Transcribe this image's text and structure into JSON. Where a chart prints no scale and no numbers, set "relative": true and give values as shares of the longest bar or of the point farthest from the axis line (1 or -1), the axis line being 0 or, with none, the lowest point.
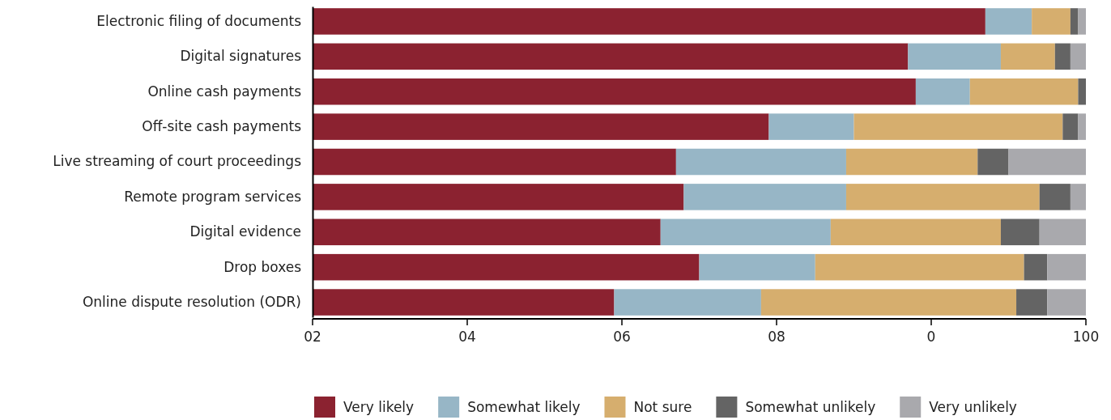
{
  "chart_data": {
    "type": "bar",
    "orientation": "horizontal",
    "stacked": true,
    "relative": true,
    "categories": [
      "Electronic filing of documents",
      "Digital signatures",
      "Online cash payments",
      "Off-site cash payments",
      "Live streaming of court proceedings",
      "Remote program services",
      "Digital evidence",
      "Drop boxes",
      "Online dispute resolution (ODR)"
    ],
    "series": [
      {
        "name": "Very likely",
        "color": "#8b2230",
        "values": [
          0.87,
          0.77,
          0.78,
          0.59,
          0.47,
          0.48,
          0.45,
          0.5,
          0.39
        ]
      },
      {
        "name": "Somewhat likely",
        "color": "#97b6c6",
        "values": [
          0.06,
          0.12,
          0.07,
          0.11,
          0.22,
          0.21,
          0.22,
          0.15,
          0.19
        ]
      },
      {
        "name": "Not sure",
        "color": "#d6ae6e",
        "values": [
          0.05,
          0.07,
          0.14,
          0.27,
          0.17,
          0.25,
          0.22,
          0.27,
          0.33
        ]
      },
      {
        "name": "Somewhat unlikely",
        "color": "#646464",
        "values": [
          0.01,
          0.02,
          0.01,
          0.02,
          0.04,
          0.04,
          0.05,
          0.03,
          0.04
        ]
      },
      {
        "name": "Very unlikely",
        "color": "#a9a9ad",
        "values": [
          0.01,
          0.02,
          0,
          0.01,
          0.1,
          0.02,
          0.06,
          0.05,
          0.05
        ]
      }
    ],
    "annotations": [
      "02",
      "04",
      "06",
      "08",
      "0",
      "100"
    ],
    "legend": "bottom"
  }
}
